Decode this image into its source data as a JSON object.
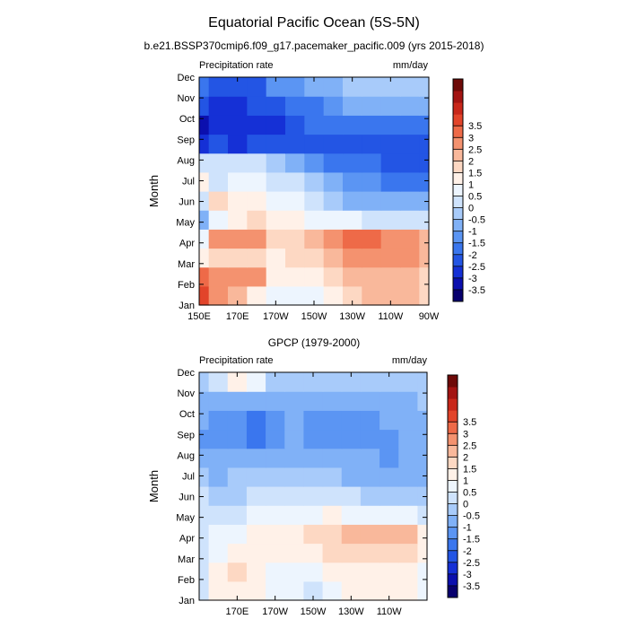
{
  "page": {
    "title": "Equatorial Pacific Ocean (5S-5N)"
  },
  "colors": {
    "scale": [
      "#08006e",
      "#0b0fae",
      "#1530d6",
      "#2355e4",
      "#3a76ee",
      "#5b95f3",
      "#80b1f7",
      "#a8cbfa",
      "#cfe3fc",
      "#edf5fe",
      "#fff1e8",
      "#fdd8c3",
      "#f9b89b",
      "#f4926f",
      "#ee6a48",
      "#e2442a",
      "#c8271a",
      "#a31412",
      "#6e0a08"
    ]
  },
  "colorbar": {
    "levels": [
      -3.5,
      -3,
      -2.5,
      -2,
      -1.5,
      -1,
      -0.5,
      0,
      0.5,
      1,
      1.5,
      2,
      2.5,
      3,
      3.5
    ],
    "labels": [
      "-3.5",
      "-3",
      "-2.5",
      "-2",
      "-1.5",
      "-1",
      "-0.5",
      "0",
      "0.5",
      "1",
      "1.5",
      "2",
      "2.5",
      "3",
      "3.5"
    ]
  },
  "chart_data": [
    {
      "type": "heatmap",
      "title": "b.e21.BSSP370cmip6.f09_g17.pacemaker_pacific.009 (yrs 2015-2018)",
      "left_label": "Precipitation rate",
      "right_label": "mm/day",
      "ylabel": "Month",
      "xlabel": "",
      "x_range": [
        150,
        270
      ],
      "x_ticks": [
        {
          "value": 150,
          "label": "150E"
        },
        {
          "value": 170,
          "label": "170E"
        },
        {
          "value": 190,
          "label": "170W"
        },
        {
          "value": 210,
          "label": "150W"
        },
        {
          "value": 230,
          "label": "130W"
        },
        {
          "value": 250,
          "label": "110W"
        },
        {
          "value": 270,
          "label": "90W"
        }
      ],
      "y_labels": [
        "Jan",
        "Feb",
        "Mar",
        "Apr",
        "May",
        "Jun",
        "Jul",
        "Aug",
        "Sep",
        "Oct",
        "Nov",
        "Dec"
      ],
      "x": [
        150,
        160,
        170,
        180,
        190,
        200,
        210,
        220,
        230,
        240,
        250,
        260,
        270
      ],
      "values": [
        [
          3.5,
          2.6,
          2.0,
          1.3,
          0.9,
          0.8,
          0.8,
          1.2,
          1.8,
          2.0,
          2.0,
          2.0,
          1.5
        ],
        [
          3.0,
          2.7,
          2.7,
          2.7,
          1.4,
          1.3,
          1.4,
          1.6,
          2.1,
          2.3,
          2.4,
          2.3,
          1.8
        ],
        [
          1.4,
          1.7,
          1.8,
          1.9,
          1.4,
          1.6,
          1.9,
          2.2,
          2.5,
          2.7,
          2.8,
          2.7,
          2.2
        ],
        [
          0.6,
          2.5,
          2.6,
          2.5,
          1.5,
          1.7,
          2.2,
          2.9,
          3.3,
          3.2,
          2.9,
          2.6,
          2.0
        ],
        [
          -0.7,
          0.9,
          1.4,
          1.7,
          1.3,
          1.2,
          0.9,
          0.6,
          0.5,
          0.3,
          0.2,
          0.3,
          0.3
        ],
        [
          0.4,
          1.7,
          1.2,
          1.3,
          0.9,
          0.5,
          0.1,
          -0.3,
          -0.6,
          -0.7,
          -0.8,
          -1.0,
          -0.9
        ],
        [
          1.3,
          0.2,
          0.6,
          0.7,
          0.4,
          0.0,
          -0.4,
          -0.9,
          -1.3,
          -1.5,
          -1.6,
          -1.7,
          -1.6
        ],
        [
          0.1,
          0.3,
          0.3,
          0.2,
          -0.3,
          -0.9,
          -1.3,
          -1.6,
          -1.9,
          -2.0,
          -2.1,
          -2.2,
          -2.1
        ],
        [
          -2.6,
          -2.4,
          -2.6,
          -2.4,
          -2.3,
          -2.1,
          -2.3,
          -2.4,
          -2.4,
          -2.3,
          -2.2,
          -2.3,
          -2.2
        ],
        [
          -3.1,
          -2.9,
          -2.9,
          -2.7,
          -2.6,
          -2.4,
          -2.0,
          -1.7,
          -1.6,
          -1.6,
          -1.6,
          -1.7,
          -1.6
        ],
        [
          -2.5,
          -2.6,
          -2.9,
          -2.4,
          -2.1,
          -2.0,
          -1.7,
          -1.2,
          -1.0,
          -0.9,
          -0.9,
          -0.8,
          -0.8
        ],
        [
          -2.0,
          -2.2,
          -2.5,
          -2.2,
          -1.4,
          -1.2,
          -1.0,
          -0.6,
          -0.4,
          -0.3,
          -0.2,
          -0.2,
          -0.2
        ]
      ]
    },
    {
      "type": "heatmap",
      "title": "GPCP (1979-2000)",
      "left_label": "Precipitation rate",
      "right_label": "mm/day",
      "ylabel": "Month",
      "xlabel": "",
      "x_range": [
        150,
        270
      ],
      "x_ticks": [
        {
          "value": 170,
          "label": "170E"
        },
        {
          "value": 190,
          "label": "170W"
        },
        {
          "value": 210,
          "label": "150W"
        },
        {
          "value": 230,
          "label": "130W"
        },
        {
          "value": 250,
          "label": "110W"
        }
      ],
      "y_labels": [
        "Jan",
        "Feb",
        "Mar",
        "Apr",
        "May",
        "Jun",
        "Jul",
        "Aug",
        "Sep",
        "Oct",
        "Nov",
        "Dec"
      ],
      "x": [
        150,
        160,
        170,
        180,
        190,
        200,
        210,
        220,
        230,
        240,
        250,
        260,
        270
      ],
      "values": [
        [
          0.3,
          1.0,
          1.4,
          1.2,
          0.6,
          0.5,
          0.4,
          0.7,
          1.0,
          1.1,
          1.1,
          1.0,
          0.6
        ],
        [
          0.4,
          1.1,
          1.5,
          1.4,
          0.9,
          0.8,
          0.9,
          1.0,
          1.2,
          1.4,
          1.4,
          1.3,
          0.7
        ],
        [
          0.4,
          0.9,
          1.2,
          1.3,
          1.2,
          1.1,
          1.4,
          1.6,
          1.8,
          1.9,
          1.9,
          1.8,
          1.0
        ],
        [
          0.3,
          0.5,
          0.9,
          1.1,
          1.2,
          1.3,
          1.6,
          1.9,
          2.1,
          2.2,
          2.1,
          2.0,
          1.1
        ],
        [
          0.1,
          0.2,
          0.4,
          0.6,
          0.8,
          0.9,
          0.9,
          1.0,
          0.9,
          0.8,
          0.7,
          0.6,
          0.3
        ],
        [
          0.0,
          -0.3,
          -0.2,
          0.1,
          0.3,
          0.4,
          0.3,
          0.1,
          0.0,
          -0.1,
          -0.2,
          -0.3,
          -0.3
        ],
        [
          -0.4,
          -0.6,
          -0.5,
          -0.4,
          -0.3,
          -0.2,
          -0.3,
          -0.4,
          -0.6,
          -0.7,
          -0.8,
          -0.8,
          -0.6
        ],
        [
          -0.6,
          -0.9,
          -1.0,
          -0.9,
          -0.8,
          -0.7,
          -0.7,
          -0.8,
          -0.9,
          -1.0,
          -1.1,
          -1.0,
          -0.8
        ],
        [
          -1.1,
          -1.3,
          -1.5,
          -1.6,
          -1.2,
          -0.9,
          -1.1,
          -1.2,
          -1.3,
          -1.2,
          -1.1,
          -0.9,
          -0.7
        ],
        [
          -0.8,
          -1.1,
          -1.4,
          -1.8,
          -1.3,
          -1.0,
          -1.2,
          -1.4,
          -1.3,
          -1.2,
          -1.0,
          -0.8,
          -0.6
        ],
        [
          -0.6,
          -0.8,
          -0.9,
          -0.8,
          -0.7,
          -0.6,
          -0.6,
          -0.7,
          -0.8,
          -0.8,
          -0.8,
          -0.6,
          -0.5
        ],
        [
          -0.3,
          0.3,
          1.2,
          0.5,
          -0.1,
          -0.3,
          -0.4,
          -0.4,
          -0.5,
          -0.5,
          -0.5,
          -0.4,
          -0.3
        ]
      ]
    }
  ]
}
